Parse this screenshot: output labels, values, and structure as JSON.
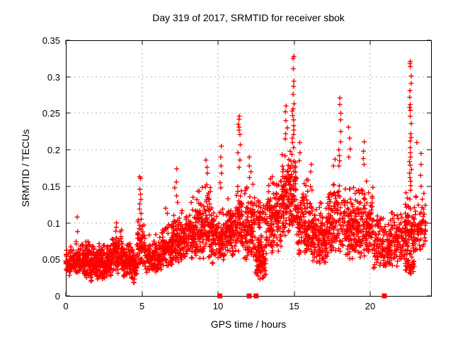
{
  "page": {
    "background": "#ffffff"
  },
  "chart_data": {
    "type": "scatter",
    "title": "Day 319 of 2017, SRMTID for receiver sbok",
    "xlabel": "GPS time / hours",
    "ylabel": "SRMTID / TECUs",
    "xlim": [
      0,
      24
    ],
    "ylim": [
      0,
      0.35
    ],
    "xticks": [
      0,
      5,
      10,
      15,
      20
    ],
    "xtick_labels": [
      "0",
      "5",
      "10",
      "15",
      "20"
    ],
    "yticks": [
      0,
      0.05,
      0.1,
      0.15,
      0.2,
      0.25,
      0.3,
      0.35
    ],
    "ytick_labels": [
      "0",
      "0.05",
      "0.1",
      "0.15",
      "0.2",
      "0.25",
      "0.3",
      "0.35"
    ],
    "grid": true,
    "grid_color": "#b0b0b0",
    "axis_color": "#000000",
    "marker": {
      "shape": "plus",
      "color": "#ff0000",
      "size": 7
    },
    "axis_marker": {
      "shape": "filled-square",
      "color": "#ff0000",
      "size": 7,
      "y": 0,
      "x": [
        10.12,
        12.05,
        12.5,
        20.93
      ]
    },
    "seed": 319,
    "density_bands": [
      [
        0.0,
        0.5,
        0.028,
        0.068,
        55
      ],
      [
        0.5,
        1.0,
        0.03,
        0.075,
        65
      ],
      [
        1.0,
        1.6,
        0.025,
        0.08,
        85
      ],
      [
        1.6,
        2.2,
        0.018,
        0.075,
        85
      ],
      [
        2.2,
        3.0,
        0.02,
        0.075,
        110
      ],
      [
        3.0,
        3.7,
        0.03,
        0.095,
        95
      ],
      [
        3.7,
        4.3,
        0.025,
        0.08,
        80
      ],
      [
        4.3,
        4.7,
        0.012,
        0.075,
        55
      ],
      [
        4.7,
        5.15,
        0.04,
        0.115,
        60
      ],
      [
        5.15,
        6.3,
        0.03,
        0.085,
        130
      ],
      [
        6.3,
        7.0,
        0.038,
        0.105,
        100
      ],
      [
        7.0,
        7.6,
        0.045,
        0.12,
        90
      ],
      [
        7.6,
        8.6,
        0.05,
        0.12,
        120
      ],
      [
        8.6,
        9.6,
        0.05,
        0.16,
        140
      ],
      [
        9.6,
        10.45,
        0.042,
        0.125,
        110
      ],
      [
        10.45,
        11.2,
        0.05,
        0.135,
        100
      ],
      [
        11.2,
        11.6,
        0.06,
        0.165,
        55
      ],
      [
        11.6,
        12.45,
        0.045,
        0.155,
        110
      ],
      [
        12.45,
        13.15,
        0.022,
        0.09,
        95
      ],
      [
        12.5,
        13.15,
        0.09,
        0.135,
        35
      ],
      [
        13.15,
        14.2,
        0.055,
        0.175,
        140
      ],
      [
        14.2,
        14.85,
        0.08,
        0.21,
        110
      ],
      [
        14.85,
        15.15,
        0.09,
        0.21,
        45
      ],
      [
        15.15,
        16.2,
        0.055,
        0.165,
        140
      ],
      [
        16.2,
        17.2,
        0.04,
        0.13,
        125
      ],
      [
        17.2,
        18.25,
        0.055,
        0.165,
        120
      ],
      [
        18.25,
        19.2,
        0.045,
        0.155,
        125
      ],
      [
        19.2,
        20.2,
        0.05,
        0.16,
        125
      ],
      [
        20.2,
        21.3,
        0.035,
        0.115,
        115
      ],
      [
        21.3,
        22.3,
        0.04,
        0.125,
        105
      ],
      [
        22.3,
        22.85,
        0.045,
        0.15,
        70
      ],
      [
        22.3,
        22.9,
        0.028,
        0.06,
        40
      ],
      [
        22.85,
        23.65,
        0.05,
        0.145,
        75
      ]
    ],
    "peak_columns": [
      {
        "x": 0.75,
        "dx": 0.03,
        "ys": [
          0.108,
          0.088
        ]
      },
      {
        "x": 3.35,
        "dx": 0.05,
        "ys": [
          0.1,
          0.094
        ]
      },
      {
        "x": 4.9,
        "dx": 0.07,
        "ys": [
          0.163,
          0.161,
          0.146,
          0.139,
          0.132,
          0.126,
          0.119,
          0.113
        ]
      },
      {
        "x": 6.6,
        "dx": 0.07,
        "ys": [
          0.12,
          0.113
        ]
      },
      {
        "x": 7.25,
        "dx": 0.1,
        "ys": [
          0.174,
          0.156,
          0.148,
          0.137,
          0.128
        ]
      },
      {
        "x": 8.3,
        "dx": 0.1,
        "ys": [
          0.135,
          0.128
        ]
      },
      {
        "x": 9.3,
        "dx": 0.1,
        "ys": [
          0.186,
          0.176,
          0.168
        ]
      },
      {
        "x": 10.2,
        "dx": 0.06,
        "ys": [
          0.205,
          0.19,
          0.178,
          0.168,
          0.155,
          0.148
        ]
      },
      {
        "x": 11.38,
        "dx": 0.1,
        "ys": [
          0.246,
          0.242,
          0.235,
          0.231,
          0.227,
          0.221,
          0.207,
          0.196,
          0.186,
          0.176
        ]
      },
      {
        "x": 12.1,
        "dx": 0.08,
        "ys": [
          0.19,
          0.178,
          0.17,
          0.162
        ]
      },
      {
        "x": 14.5,
        "dx": 0.12,
        "ys": [
          0.26,
          0.252,
          0.24,
          0.23,
          0.222,
          0.215
        ]
      },
      {
        "x": 14.93,
        "dx": 0.07,
        "ys": [
          0.328,
          0.325,
          0.311,
          0.294,
          0.287,
          0.276,
          0.263,
          0.256,
          0.253,
          0.247,
          0.241,
          0.233,
          0.227,
          0.221,
          0.216,
          0.21,
          0.203
        ]
      },
      {
        "x": 15.35,
        "dx": 0.08,
        "ys": [
          0.21,
          0.196,
          0.185
        ]
      },
      {
        "x": 16.1,
        "dx": 0.08,
        "ys": [
          0.18,
          0.17
        ]
      },
      {
        "x": 17.62,
        "dx": 0.08,
        "ys": [
          0.187,
          0.178
        ]
      },
      {
        "x": 18.0,
        "dx": 0.08,
        "ys": [
          0.271,
          0.262,
          0.25,
          0.241,
          0.225,
          0.211,
          0.2,
          0.192,
          0.185,
          0.178
        ]
      },
      {
        "x": 18.62,
        "dx": 0.08,
        "ys": [
          0.231,
          0.216,
          0.201,
          0.19
        ]
      },
      {
        "x": 19.55,
        "dx": 0.09,
        "ys": [
          0.211,
          0.198,
          0.188,
          0.18
        ]
      },
      {
        "x": 22.65,
        "dx": 0.07,
        "ys": [
          0.321,
          0.318,
          0.314,
          0.301,
          0.291,
          0.281,
          0.272,
          0.262,
          0.258,
          0.254,
          0.246,
          0.236,
          0.222,
          0.217,
          0.212,
          0.203,
          0.196,
          0.19,
          0.184,
          0.179,
          0.173,
          0.168,
          0.162,
          0.157,
          0.151
        ]
      },
      {
        "x": 23.2,
        "dx": 0.15,
        "ys": [
          0.21,
          0.195,
          0.18,
          0.165,
          0.15
        ]
      }
    ]
  }
}
